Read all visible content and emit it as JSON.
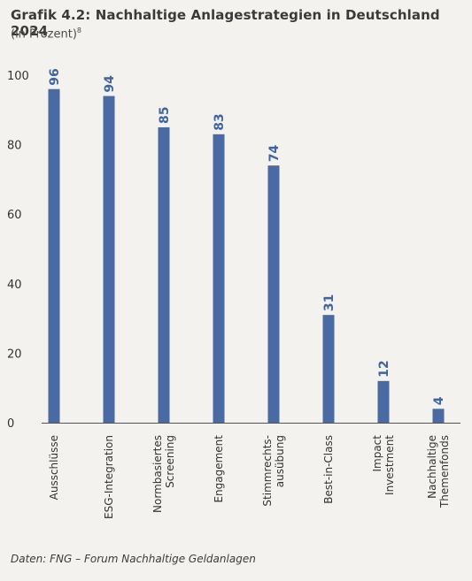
{
  "header": {
    "title": "Grafik 4.2: Nachhaltige Anlagestrategien in Deutschland 2024",
    "subtitle": "(in Prozent)",
    "footnote_mark": "8"
  },
  "footer": {
    "source": "Daten: FNG – Forum Nachhaltige Geldanlagen"
  },
  "colors": {
    "bar": "#4a6aa3",
    "label": "#3f64a0",
    "axis": "#555555",
    "background": "#f3f2ee"
  },
  "chart_data": {
    "type": "bar",
    "title": "Grafik 4.2: Nachhaltige Anlagestrategien in Deutschland 2024",
    "subtitle": "(in Prozent)",
    "categories": [
      [
        "Ausschlüsse"
      ],
      [
        "ESG-Integration"
      ],
      [
        "Normbasiertes",
        "Screening"
      ],
      [
        "Engagement"
      ],
      [
        "Stimmrechts-",
        "ausübung"
      ],
      [
        "Best-in-Class"
      ],
      [
        "Impact",
        "Investment"
      ],
      [
        "Nachhaltige",
        "Themenfonds"
      ]
    ],
    "values": [
      96,
      94,
      85,
      83,
      74,
      31,
      12,
      4
    ],
    "yticks": [
      0,
      20,
      40,
      60,
      80,
      100
    ],
    "ylim": [
      0,
      100
    ],
    "grid": false,
    "legend": "none"
  }
}
